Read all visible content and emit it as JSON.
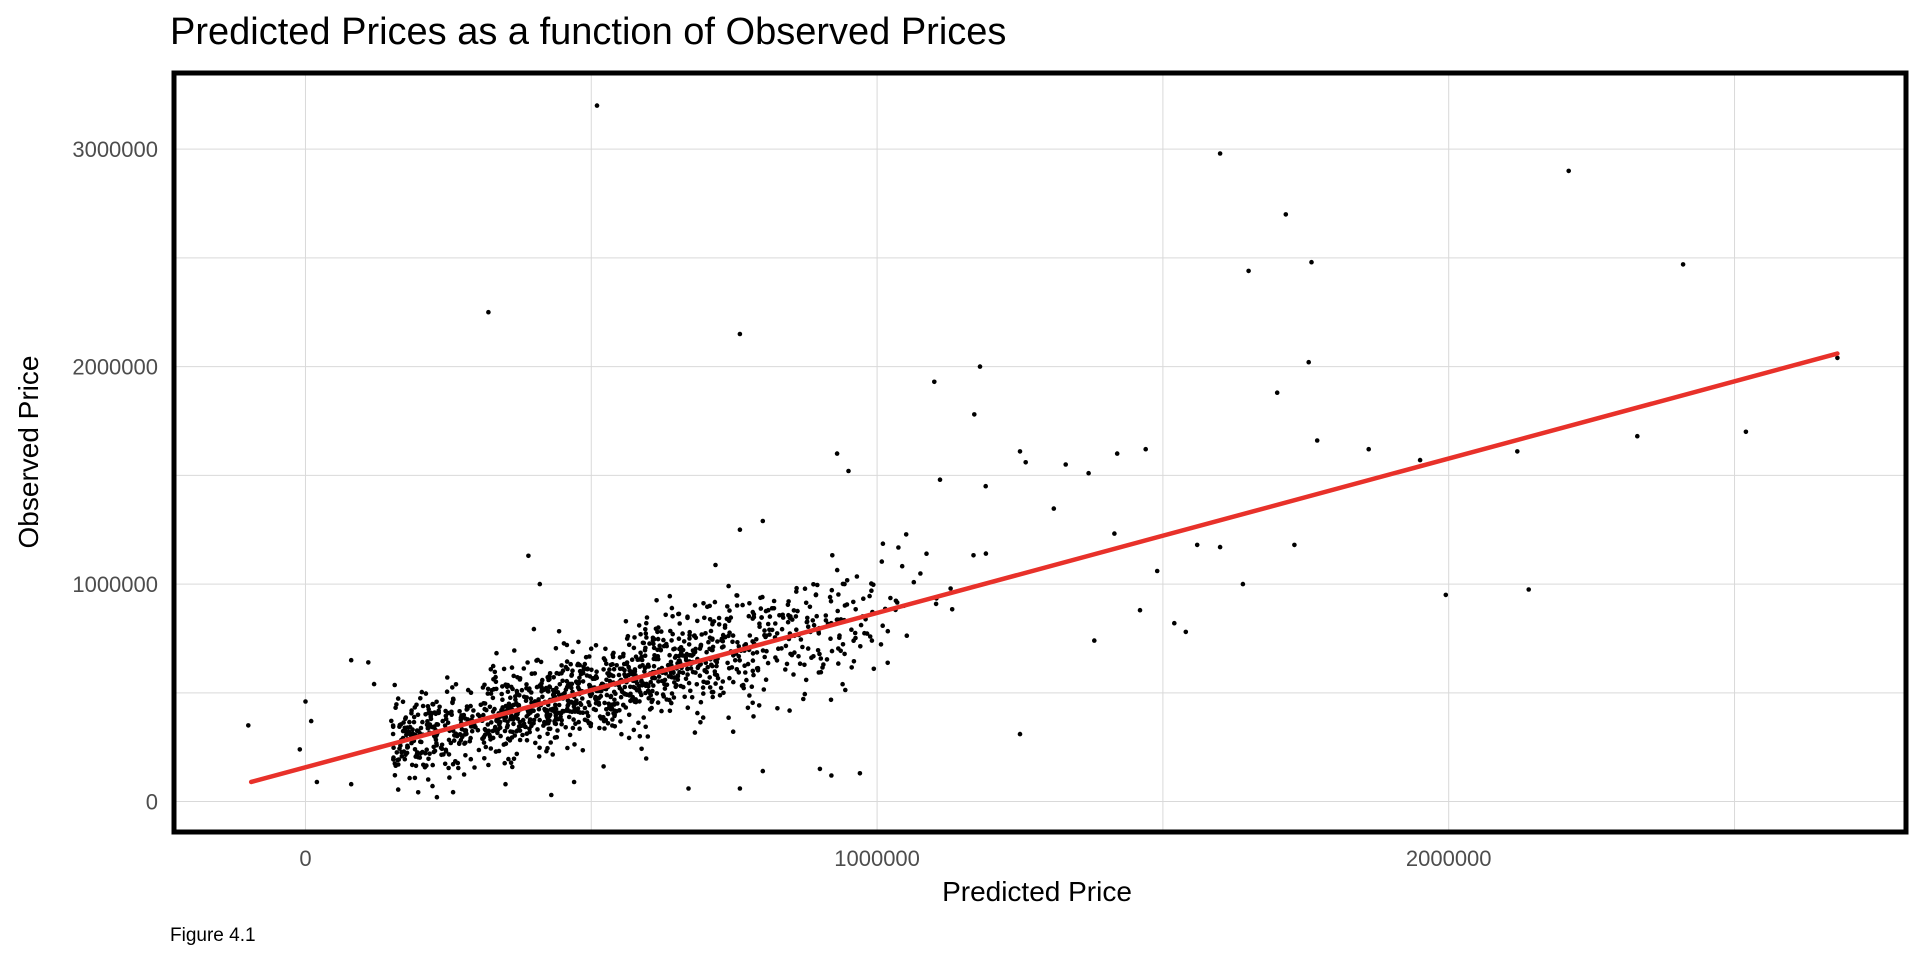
{
  "chart_data": {
    "type": "scatter",
    "title": "Predicted Prices as a function of Observed Prices",
    "xlabel": "Predicted Price",
    "ylabel": "Observed Price",
    "caption": "Figure 4.1",
    "xlim": [
      -230000,
      2800000
    ],
    "ylim": [
      -140000,
      3350000
    ],
    "x_ticks": [
      0,
      1000000,
      2000000
    ],
    "x_tick_labels": [
      "0",
      "1000000",
      "2000000"
    ],
    "y_ticks": [
      0,
      1000000,
      2000000,
      3000000
    ],
    "y_tick_labels": [
      "0",
      "1000000",
      "2000000",
      "3000000"
    ],
    "grid": true,
    "legend": "none",
    "point_color": "#000000",
    "fit_line": {
      "color": "#e8312a",
      "x": [
        -95000,
        2680000
      ],
      "y": [
        90000,
        2060000
      ]
    },
    "dense_cluster": {
      "count": 1350,
      "seed": 7,
      "x_range": [
        150000,
        1500000
      ],
      "residual_sd": 110000
    },
    "points": [
      [
        510000,
        3200000
      ],
      [
        320000,
        2250000
      ],
      [
        760000,
        2150000
      ],
      [
        1600000,
        2980000
      ],
      [
        1715000,
        2700000
      ],
      [
        1650000,
        2440000
      ],
      [
        1760000,
        2480000
      ],
      [
        2210000,
        2900000
      ],
      [
        2410000,
        2470000
      ],
      [
        1755000,
        2020000
      ],
      [
        1700000,
        1880000
      ],
      [
        1770000,
        1660000
      ],
      [
        1860000,
        1620000
      ],
      [
        1950000,
        1570000
      ],
      [
        2120000,
        1610000
      ],
      [
        2330000,
        1680000
      ],
      [
        2520000,
        1700000
      ],
      [
        2680000,
        2040000
      ],
      [
        1995000,
        950000
      ],
      [
        2140000,
        975000
      ],
      [
        1730000,
        1180000
      ],
      [
        1640000,
        1000000
      ],
      [
        1100000,
        1930000
      ],
      [
        1180000,
        2000000
      ],
      [
        1170000,
        1780000
      ],
      [
        1250000,
        1610000
      ],
      [
        1260000,
        1560000
      ],
      [
        930000,
        1600000
      ],
      [
        950000,
        1520000
      ],
      [
        1330000,
        1550000
      ],
      [
        1370000,
        1510000
      ],
      [
        1420000,
        1600000
      ],
      [
        1470000,
        1620000
      ],
      [
        -100000,
        350000
      ],
      [
        0,
        460000
      ],
      [
        10000,
        370000
      ],
      [
        -10000,
        240000
      ],
      [
        20000,
        90000
      ],
      [
        80000,
        650000
      ],
      [
        110000,
        640000
      ],
      [
        120000,
        540000
      ],
      [
        80000,
        80000
      ],
      [
        230000,
        20000
      ],
      [
        430000,
        30000
      ],
      [
        670000,
        60000
      ],
      [
        760000,
        60000
      ],
      [
        800000,
        140000
      ],
      [
        900000,
        150000
      ],
      [
        920000,
        120000
      ],
      [
        970000,
        130000
      ],
      [
        1250000,
        310000
      ],
      [
        390000,
        1130000
      ],
      [
        410000,
        1000000
      ],
      [
        350000,
        80000
      ],
      [
        470000,
        90000
      ],
      [
        1110000,
        1480000
      ],
      [
        1190000,
        1450000
      ],
      [
        1380000,
        740000
      ],
      [
        1460000,
        880000
      ],
      [
        1540000,
        780000
      ],
      [
        1490000,
        1060000
      ],
      [
        1560000,
        1180000
      ],
      [
        1520000,
        820000
      ],
      [
        1600000,
        1170000
      ],
      [
        800000,
        1290000
      ],
      [
        760000,
        1250000
      ]
    ]
  }
}
